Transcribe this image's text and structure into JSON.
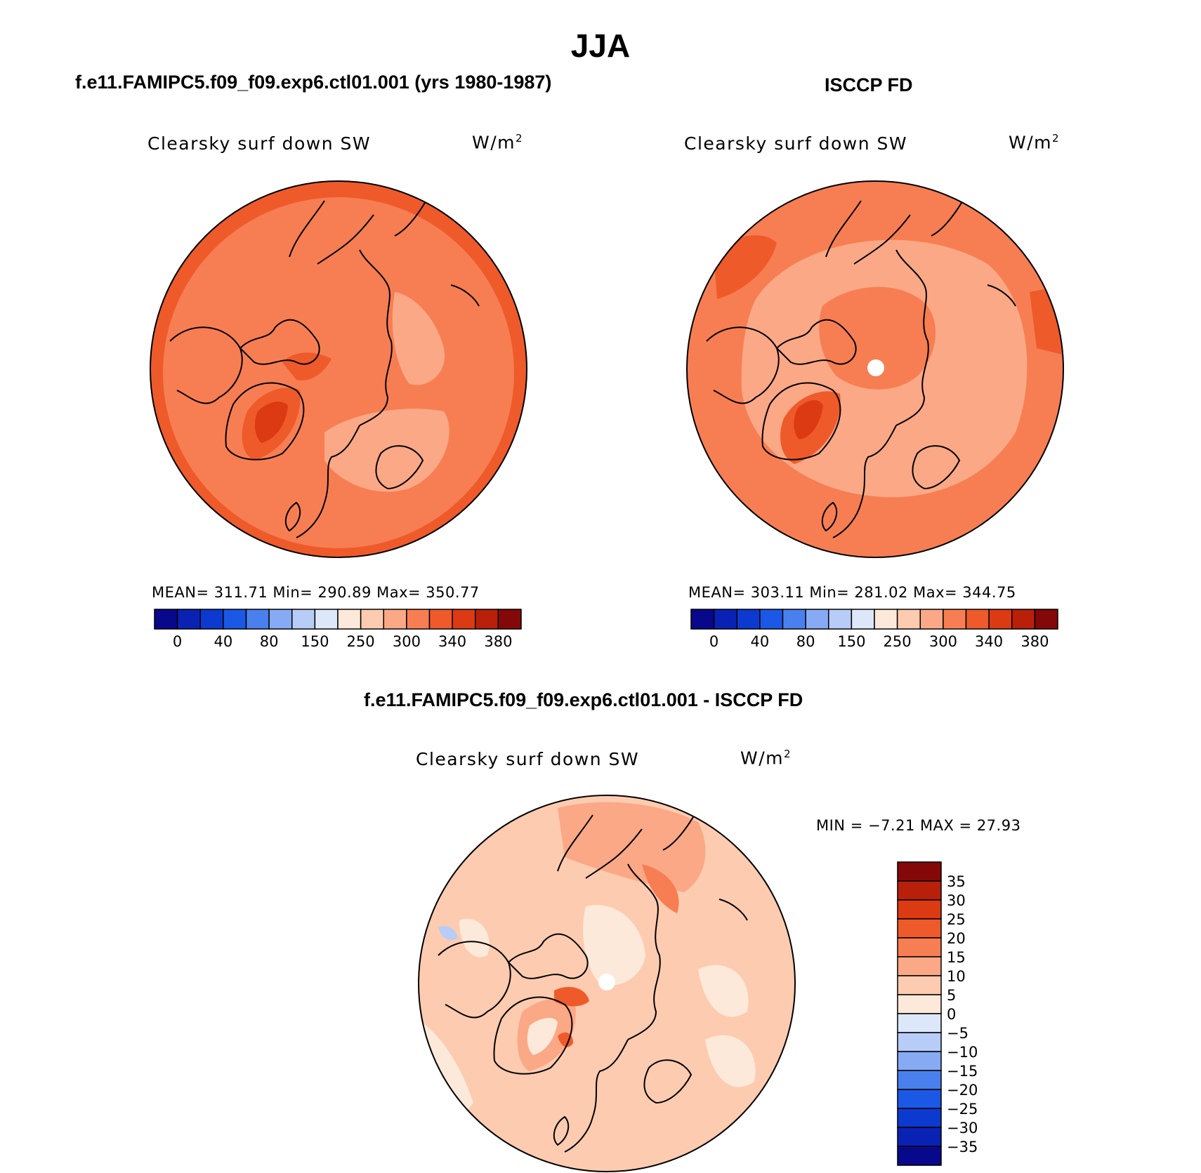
{
  "title": "JJA",
  "panels": [
    {
      "case_title": "f.e11.FAMIPC5.f09_f09.exp6.ctl01.001 (yrs 1980-1987)",
      "variable": "Clearsky surf down SW",
      "units_base": "W/m",
      "units_exp": "2",
      "stats": "MEAN= 311.71   Min= 290.89   Max= 350.77"
    },
    {
      "case_title": "ISCCP FD",
      "variable": "Clearsky surf down SW",
      "units_base": "W/m",
      "units_exp": "2",
      "stats": "MEAN= 303.11   Min= 281.02   Max= 344.75"
    },
    {
      "case_title": "f.e11.FAMIPC5.f09_f09.exp6.ctl01.001 - ISCCP FD",
      "variable": "Clearsky surf down SW",
      "units_base": "W/m",
      "units_exp": "2",
      "stats": "MIN =   −7.21  MAX =   27.93"
    }
  ],
  "colorbar_abs": {
    "labels": [
      "0",
      "40",
      "80",
      "150",
      "250",
      "300",
      "340",
      "380"
    ],
    "colors": [
      "#08088c",
      "#0a22b4",
      "#0c3ad0",
      "#1c58e6",
      "#4a80ee",
      "#86aaf4",
      "#b8ccf8",
      "#dce8fa",
      "#fde9d9",
      "#fdcbb0",
      "#fba886",
      "#f77e52",
      "#ef5a2a",
      "#dc3a12",
      "#b8200a",
      "#840808"
    ]
  },
  "colorbar_diff": {
    "labels": [
      "35",
      "30",
      "25",
      "20",
      "15",
      "10",
      "5",
      "0",
      "−5",
      "−10",
      "−15",
      "−20",
      "−25",
      "−30",
      "−35"
    ],
    "colors": [
      "#840808",
      "#b8200a",
      "#dc3a12",
      "#ef5a2a",
      "#f77e52",
      "#fba886",
      "#fdcbb0",
      "#fde9d9",
      "#dce8fa",
      "#b8ccf8",
      "#86aaf4",
      "#4a80ee",
      "#1c58e6",
      "#0c3ad0",
      "#0a22b4",
      "#08088c"
    ]
  }
}
